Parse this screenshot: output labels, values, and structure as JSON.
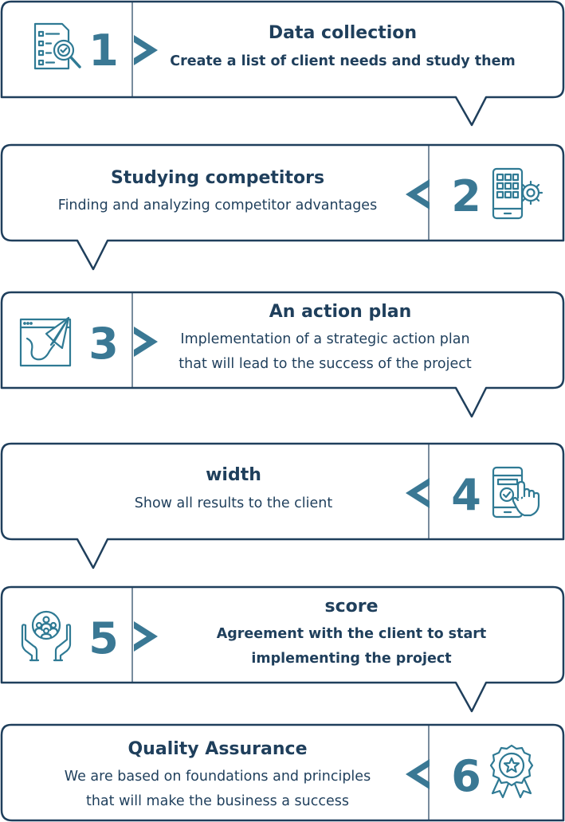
{
  "colors": {
    "outline": "#1f3f5c",
    "accent": "#3a7894",
    "icon": "#2f7a94",
    "text": "#1f3f5c"
  },
  "steps": [
    {
      "number": "1",
      "title": "Data collection",
      "description": [
        "Create a list of client needs and study them"
      ],
      "icon": "checklist-magnifier-icon"
    },
    {
      "number": "2",
      "title": "Studying competitors",
      "description": [
        "Finding and analyzing competitor advantages"
      ],
      "icon": "phone-gear-icon"
    },
    {
      "number": "3",
      "title": "An action plan",
      "description": [
        "Implementation of a strategic action plan",
        "that will lead to the success of the project"
      ],
      "icon": "paper-plane-window-icon"
    },
    {
      "number": "4",
      "title": "width",
      "description": [
        "Show all results to the client"
      ],
      "icon": "phone-touch-icon"
    },
    {
      "number": "5",
      "title": "score",
      "description": [
        "Agreement with the client to start",
        "implementing the project"
      ],
      "icon": "hands-people-icon"
    },
    {
      "number": "6",
      "title": "Quality Assurance",
      "description": [
        "We are based on foundations and principles",
        "that will make the business a success"
      ],
      "icon": "award-badge-icon"
    }
  ]
}
